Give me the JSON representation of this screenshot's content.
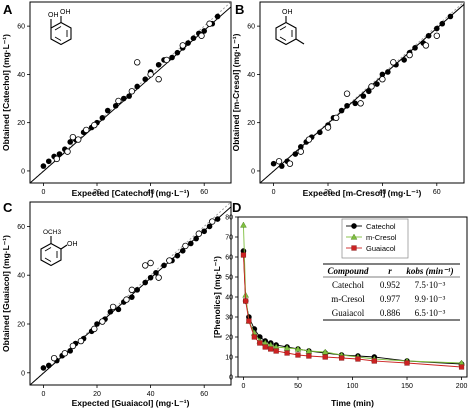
{
  "figure": {
    "panels": [
      {
        "letter": "A",
        "xlabel": "Expected [Catechol] (mg·L⁻¹)",
        "ylabel": "Obtained [Catechol] (mg·L⁻¹)",
        "molecule": {
          "sub1": "OH",
          "sub2": "OH",
          "sub2_pos": "ortho-OH"
        }
      },
      {
        "letter": "B",
        "xlabel": "Expected [m-Cresol] (mg·L⁻¹)",
        "ylabel": "Obtained [m-Cresol] (mg·L⁻¹)",
        "molecule": {
          "sub1": "OH",
          "sub2": "",
          "sub2_pos": "meta-CH3"
        }
      },
      {
        "letter": "C",
        "xlabel": "Expected [Guaiacol] (mg·L⁻¹)",
        "ylabel": "Obtained [Guaiacol] (mg·L⁻¹)",
        "molecule": {
          "sub1": "OCH3",
          "sub2": "OH",
          "sub2_pos": "ortho-OH"
        }
      },
      {
        "letter": "D",
        "xlabel": "Time (min)",
        "ylabel": "[Phenolics] (mg·L⁻¹)"
      }
    ]
  },
  "kinetics_table": {
    "headers": [
      "Compound",
      "r",
      "kobs (min⁻¹)"
    ],
    "rows": [
      [
        "Catechol",
        "0.952",
        "7.5·10⁻³"
      ],
      [
        "m-Cresol",
        "0.977",
        "9.9·10⁻³"
      ],
      [
        "Guaiacol",
        "0.886",
        "6.5·10⁻³"
      ]
    ]
  },
  "colors": {
    "catechol": "#000000",
    "mcresol": "#7fbf3f",
    "guaiacol": "#cc2222",
    "fit": "#000000",
    "identity": "#999999"
  },
  "chart_data": [
    {
      "type": "scatter",
      "xlabel": "Expected [Catechol] (mg·L⁻¹)",
      "ylabel": "Obtained [Catechol] (mg·L⁻¹)",
      "xlim": [
        -5,
        70
      ],
      "ylim": [
        -5,
        70
      ],
      "xticks": [
        0,
        20,
        40,
        60
      ],
      "yticks": [
        0,
        20,
        40,
        60
      ],
      "series": [
        {
          "marker": "filled",
          "points": [
            [
              0,
              2
            ],
            [
              2,
              4
            ],
            [
              4,
              6
            ],
            [
              6,
              7
            ],
            [
              8,
              9
            ],
            [
              10,
              12
            ],
            [
              12,
              13
            ],
            [
              15,
              16
            ],
            [
              18,
              18
            ],
            [
              20,
              20
            ],
            [
              22,
              22
            ],
            [
              24,
              25
            ],
            [
              27,
              27
            ],
            [
              30,
              30
            ],
            [
              32,
              31
            ],
            [
              35,
              35
            ],
            [
              38,
              38
            ],
            [
              40,
              41
            ],
            [
              43,
              44
            ],
            [
              45,
              46
            ],
            [
              48,
              47
            ],
            [
              50,
              49
            ],
            [
              52,
              51
            ],
            [
              54,
              53
            ],
            [
              56,
              55
            ],
            [
              58,
              57
            ],
            [
              60,
              58
            ],
            [
              63,
              61
            ],
            [
              65,
              64
            ]
          ]
        },
        {
          "marker": "open",
          "points": [
            [
              5,
              5
            ],
            [
              9,
              8
            ],
            [
              11,
              14
            ],
            [
              13,
              13
            ],
            [
              16,
              17
            ],
            [
              19,
              19
            ],
            [
              28,
              29
            ],
            [
              33,
              33
            ],
            [
              35,
              45
            ],
            [
              40,
              40
            ],
            [
              43,
              38
            ],
            [
              46,
              46
            ],
            [
              52,
              52
            ],
            [
              59,
              56
            ],
            [
              62,
              61
            ]
          ]
        }
      ],
      "fit_line": [
        [
          -5,
          -5
        ],
        [
          70,
          68
        ]
      ],
      "identity_line": [
        [
          -5,
          -5
        ],
        [
          70,
          70
        ]
      ]
    },
    {
      "type": "scatter",
      "xlabel": "Expected [m-Cresol] (mg·L⁻¹)",
      "ylabel": "Obtained [m-Cresol] (mg·L⁻¹)",
      "xlim": [
        -5,
        70
      ],
      "ylim": [
        -5,
        70
      ],
      "xticks": [
        0,
        20,
        40,
        60
      ],
      "yticks": [
        0,
        20,
        40,
        60
      ],
      "series": [
        {
          "marker": "filled",
          "points": [
            [
              0,
              3
            ],
            [
              3,
              2
            ],
            [
              5,
              4
            ],
            [
              8,
              7
            ],
            [
              10,
              10
            ],
            [
              12,
              12
            ],
            [
              14,
              14
            ],
            [
              17,
              16
            ],
            [
              20,
              19
            ],
            [
              22,
              22
            ],
            [
              25,
              25
            ],
            [
              27,
              27
            ],
            [
              30,
              28
            ],
            [
              33,
              31
            ],
            [
              35,
              33
            ],
            [
              38,
              36
            ],
            [
              40,
              40
            ],
            [
              42,
              41
            ],
            [
              45,
              44
            ],
            [
              48,
              46
            ],
            [
              50,
              49
            ],
            [
              52,
              51
            ],
            [
              55,
              53
            ],
            [
              57,
              56
            ],
            [
              60,
              59
            ],
            [
              62,
              61
            ],
            [
              65,
              64
            ]
          ]
        },
        {
          "marker": "open",
          "points": [
            [
              2,
              4
            ],
            [
              6,
              3
            ],
            [
              10,
              8
            ],
            [
              13,
              13
            ],
            [
              20,
              18
            ],
            [
              23,
              22
            ],
            [
              27,
              32
            ],
            [
              32,
              28
            ],
            [
              36,
              35
            ],
            [
              40,
              38
            ],
            [
              44,
              45
            ],
            [
              50,
              48
            ],
            [
              56,
              52
            ],
            [
              60,
              56
            ]
          ]
        }
      ],
      "fit_line": [
        [
          -5,
          -5
        ],
        [
          70,
          69
        ]
      ],
      "identity_line": [
        [
          -5,
          -5
        ],
        [
          70,
          70
        ]
      ]
    },
    {
      "type": "scatter",
      "xlabel": "Expected [Guaiacol] (mg·L⁻¹)",
      "ylabel": "Obtained [Guaiacol] (mg·L⁻¹)",
      "xlim": [
        -5,
        70
      ],
      "ylim": [
        -5,
        70
      ],
      "xticks": [
        0,
        20,
        40,
        60
      ],
      "yticks": [
        0,
        20,
        40,
        60
      ],
      "series": [
        {
          "marker": "filled",
          "points": [
            [
              0,
              2
            ],
            [
              2,
              3
            ],
            [
              5,
              5
            ],
            [
              7,
              7
            ],
            [
              10,
              9
            ],
            [
              12,
              12
            ],
            [
              15,
              14
            ],
            [
              18,
              17
            ],
            [
              20,
              20
            ],
            [
              23,
              22
            ],
            [
              25,
              25
            ],
            [
              28,
              26
            ],
            [
              30,
              29
            ],
            [
              33,
              31
            ],
            [
              35,
              34
            ],
            [
              38,
              37
            ],
            [
              40,
              39
            ],
            [
              42,
              41
            ],
            [
              45,
              44
            ],
            [
              48,
              46
            ],
            [
              50,
              48
            ],
            [
              52,
              50
            ],
            [
              55,
              53
            ],
            [
              57,
              55
            ],
            [
              60,
              58
            ],
            [
              62,
              60
            ],
            [
              65,
              63
            ]
          ]
        },
        {
          "marker": "open",
          "points": [
            [
              4,
              6
            ],
            [
              8,
              8
            ],
            [
              11,
              11
            ],
            [
              14,
              13
            ],
            [
              19,
              18
            ],
            [
              22,
              21
            ],
            [
              26,
              27
            ],
            [
              31,
              30
            ],
            [
              33,
              34
            ],
            [
              38,
              44
            ],
            [
              40,
              45
            ],
            [
              43,
              39
            ],
            [
              47,
              46
            ],
            [
              53,
              52
            ],
            [
              58,
              57
            ],
            [
              63,
              62
            ]
          ]
        }
      ],
      "fit_line": [
        [
          -5,
          -5
        ],
        [
          70,
          68
        ]
      ],
      "identity_line": [
        [
          -5,
          -5
        ],
        [
          70,
          70
        ]
      ]
    },
    {
      "type": "line",
      "xlabel": "Time (min)",
      "ylabel": "[Phenolics] (mg·L⁻¹)",
      "xlim": [
        -5,
        205
      ],
      "ylim": [
        0,
        80
      ],
      "xticks": [
        0,
        50,
        100,
        150,
        200
      ],
      "yticks": [
        0,
        10,
        20,
        30,
        40,
        50,
        60,
        70,
        80
      ],
      "legend": "top-right",
      "series": [
        {
          "name": "Catechol",
          "color": "#000000",
          "marker": "circle",
          "points": [
            [
              0,
              63
            ],
            [
              2,
              38
            ],
            [
              5,
              30
            ],
            [
              10,
              24
            ],
            [
              15,
              20
            ],
            [
              20,
              18
            ],
            [
              25,
              17
            ],
            [
              30,
              16
            ],
            [
              40,
              15
            ],
            [
              50,
              14
            ],
            [
              60,
              13
            ],
            [
              75,
              12
            ],
            [
              90,
              11
            ],
            [
              105,
              10.5
            ],
            [
              120,
              10
            ],
            [
              150,
              8
            ],
            [
              200,
              6.5
            ]
          ]
        },
        {
          "name": "m-Cresol",
          "color": "#7fbf3f",
          "marker": "triangle",
          "points": [
            [
              0,
              76
            ],
            [
              2,
              41
            ],
            [
              5,
              28
            ],
            [
              10,
              22
            ],
            [
              15,
              18
            ],
            [
              20,
              17
            ],
            [
              25,
              16
            ],
            [
              30,
              15
            ],
            [
              40,
              14.5
            ],
            [
              50,
              14
            ],
            [
              60,
              13
            ],
            [
              75,
              12.5
            ],
            [
              90,
              11
            ],
            [
              105,
              10
            ],
            [
              120,
              9
            ],
            [
              150,
              8
            ],
            [
              200,
              7
            ]
          ]
        },
        {
          "name": "Guaiacol",
          "color": "#cc2222",
          "marker": "square",
          "points": [
            [
              0,
              61
            ],
            [
              2,
              38
            ],
            [
              5,
              28
            ],
            [
              10,
              20
            ],
            [
              15,
              17
            ],
            [
              20,
              15
            ],
            [
              25,
              14
            ],
            [
              30,
              13
            ],
            [
              40,
              12
            ],
            [
              50,
              11
            ],
            [
              60,
              10.5
            ],
            [
              75,
              10
            ],
            [
              90,
              9.5
            ],
            [
              105,
              9
            ],
            [
              120,
              8
            ],
            [
              150,
              7
            ],
            [
              200,
              5
            ]
          ]
        }
      ]
    }
  ]
}
